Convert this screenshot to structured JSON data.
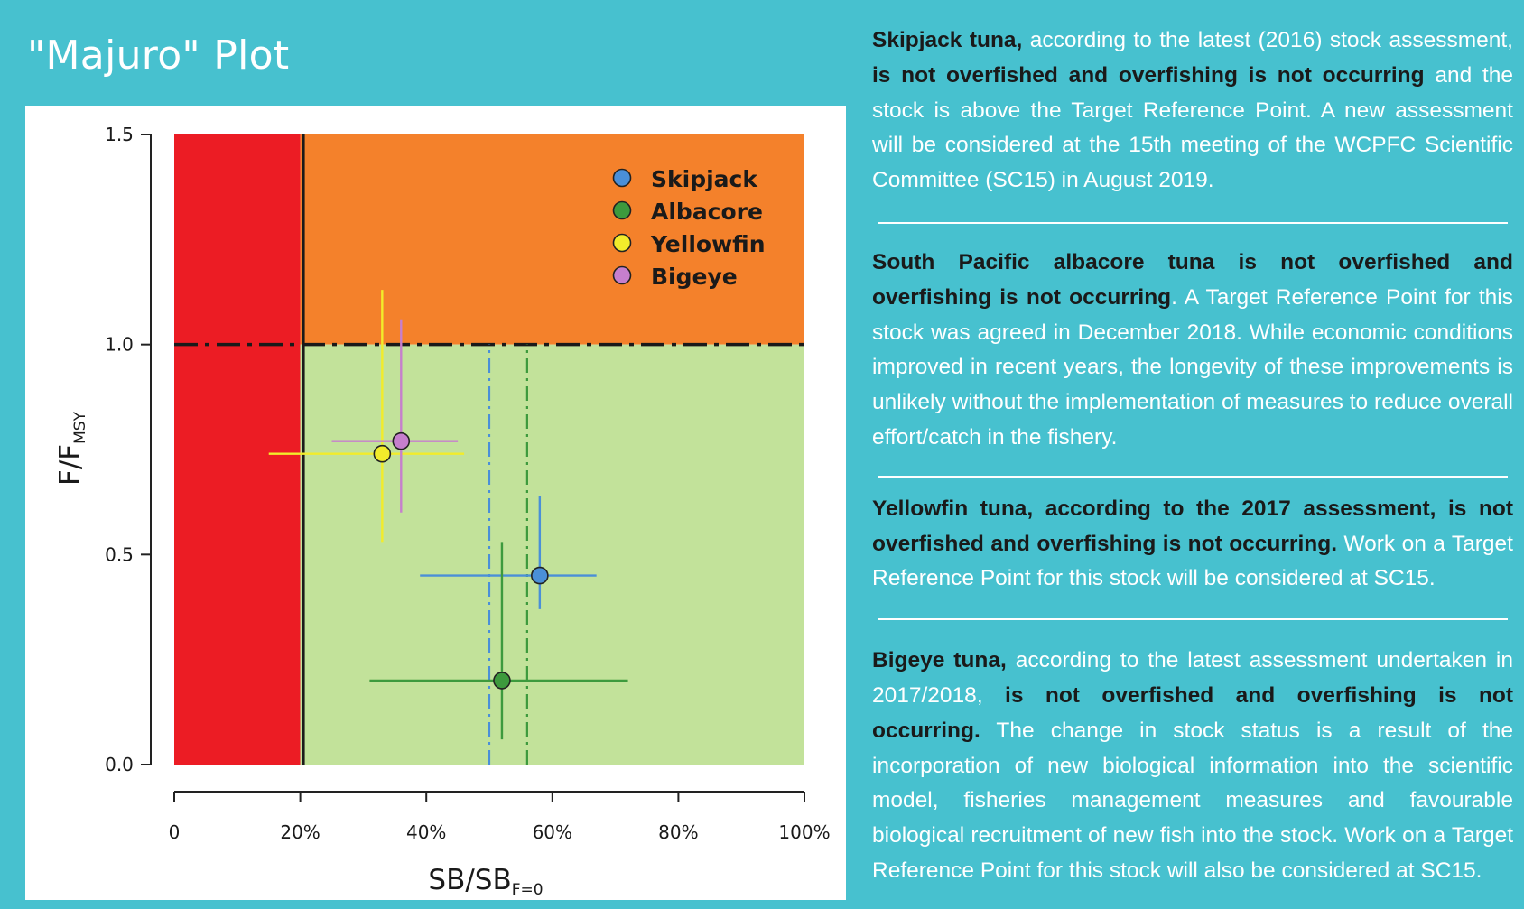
{
  "panel": {
    "title": "\"Majuro\" Plot",
    "background_color": "#47c1cf"
  },
  "chart_data": {
    "type": "scatter",
    "xlabel_main": "SB/SB",
    "xlabel_sub": "F=0",
    "ylabel_main": "F/F",
    "ylabel_sub": "MSY",
    "xlim": [
      0,
      100
    ],
    "ylim": [
      0,
      1.5
    ],
    "x_ticks": [
      0,
      20,
      40,
      60,
      80,
      100
    ],
    "x_tick_labels": [
      "0",
      "20%",
      "40%",
      "60%",
      "80%",
      "100%"
    ],
    "y_ticks": [
      0,
      0.5,
      1.0,
      1.5
    ],
    "y_tick_labels": [
      "0.0",
      "0.5",
      "1.0",
      "1.5"
    ],
    "zones": [
      {
        "name": "red",
        "x": [
          0,
          20
        ],
        "y": [
          0,
          1.5
        ],
        "color": "#ec1c24"
      },
      {
        "name": "orange",
        "x": [
          20,
          100
        ],
        "y": [
          1.0,
          1.5
        ],
        "color": "#f4812b"
      },
      {
        "name": "green",
        "x": [
          20,
          100
        ],
        "y": [
          0,
          1.0
        ],
        "color": "#c2e29a"
      }
    ],
    "reference_lines": [
      {
        "type": "vertical",
        "x": 20.5,
        "style": "solid",
        "color": "#1a1a1a"
      },
      {
        "type": "horizontal",
        "y": 1.0,
        "style": "dashdot",
        "color": "#1a1a1a"
      },
      {
        "type": "vertical",
        "x": 50,
        "style": "dashdot",
        "color": "#4a8fd8",
        "ymax": 1.0
      },
      {
        "type": "vertical",
        "x": 56,
        "style": "dashdot",
        "color": "#3d9a3d",
        "ymax": 1.0
      }
    ],
    "series": [
      {
        "name": "Skipjack",
        "color": "#4a8fd8",
        "x": 58,
        "y": 0.45,
        "x_range": [
          39,
          67
        ],
        "y_range": [
          0.37,
          0.64
        ]
      },
      {
        "name": "Albacore",
        "color": "#3d9a3d",
        "x": 52,
        "y": 0.2,
        "x_range": [
          31,
          72
        ],
        "y_range": [
          0.06,
          0.53
        ]
      },
      {
        "name": "Yellowfin",
        "color": "#f2ec2b",
        "x": 33,
        "y": 0.74,
        "x_range": [
          15,
          46
        ],
        "y_range": [
          0.53,
          1.13
        ]
      },
      {
        "name": "Bigeye",
        "color": "#c67fcd",
        "x": 36,
        "y": 0.77,
        "x_range": [
          25,
          45
        ],
        "y_range": [
          0.6,
          1.06
        ]
      }
    ],
    "legend_position": "top-right"
  },
  "text": {
    "paragraphs": [
      {
        "bold1": "Skipjack tuna,",
        "normal1": " according to the latest (2016) stock assessment, ",
        "bold2": "is not overfished and overfishing is not occurring",
        "normal2": " and the stock is above the Target Reference Point. A new assessment will be considered at the 15th meeting of the WCPFC Scientific Committee (SC15) in August 2019."
      },
      {
        "bold1": "South Pacific albacore tuna is not overfished and overfishing is not occurring",
        "normal1": ". A Target Reference Point for this stock was agreed in December 2018. While economic conditions improved in recent years, the longevity of these improvements is unlikely without the implementation of measures to reduce overall effort/catch in the fishery."
      },
      {
        "bold1": "Yellowfin tuna, according to the 2017 assessment, is not overfished and overfishing is not occurring.",
        "normal1": " Work on a Target Reference Point for this stock will be considered at SC15."
      },
      {
        "bold1": "Bigeye tuna,",
        "normal1": " according to the latest assessment undertaken in 2017/2018, ",
        "bold2": "is not overfished and overfishing is not occurring.",
        "normal2": " The change in stock status is a result of the incorporation of new biological information into the scientific model, fisheries management measures and favourable biological recruitment of new fish into the stock. Work on a Target Reference Point for this stock will also be considered at SC15."
      }
    ]
  }
}
